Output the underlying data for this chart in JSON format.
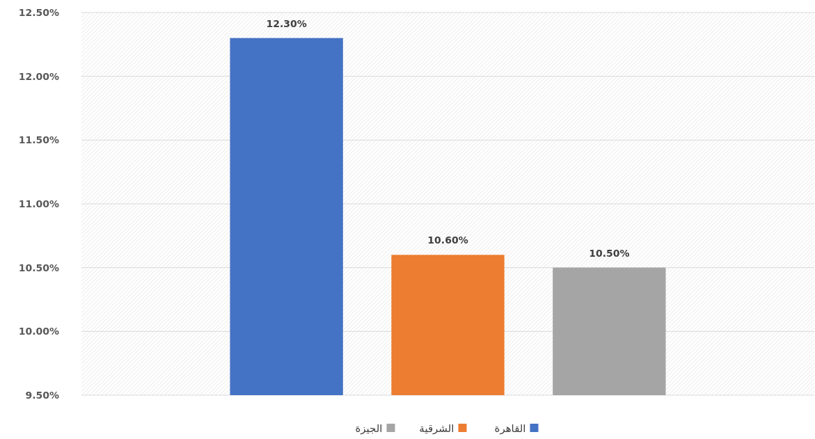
{
  "chart_data": {
    "type": "bar",
    "categories": [
      null
    ],
    "series": [
      {
        "name": "القاهرة",
        "color": "#4472c4",
        "values": [
          12.3
        ],
        "value_labels": [
          "12.30%"
        ]
      },
      {
        "name": "الشرقية",
        "color": "#ed7d31",
        "values": [
          10.6
        ],
        "value_labels": [
          "10.60%"
        ]
      },
      {
        "name": "الجيزة",
        "color": "#a5a5a5",
        "values": [
          10.5
        ],
        "value_labels": [
          "10.50%"
        ]
      }
    ],
    "ylim": [
      9.5,
      12.5
    ],
    "yticks": [
      {
        "value": 9.5,
        "label": "9.50%"
      },
      {
        "value": 10,
        "label": "10.00%"
      },
      {
        "value": 10.5,
        "label": "10.50%"
      },
      {
        "value": 11,
        "label": "11.00%"
      },
      {
        "value": 11.5,
        "label": "11.50%"
      },
      {
        "value": 12,
        "label": "12.00%"
      },
      {
        "value": 12.5,
        "label": "12.50%"
      }
    ],
    "grid": "y",
    "legend": "bottom"
  }
}
